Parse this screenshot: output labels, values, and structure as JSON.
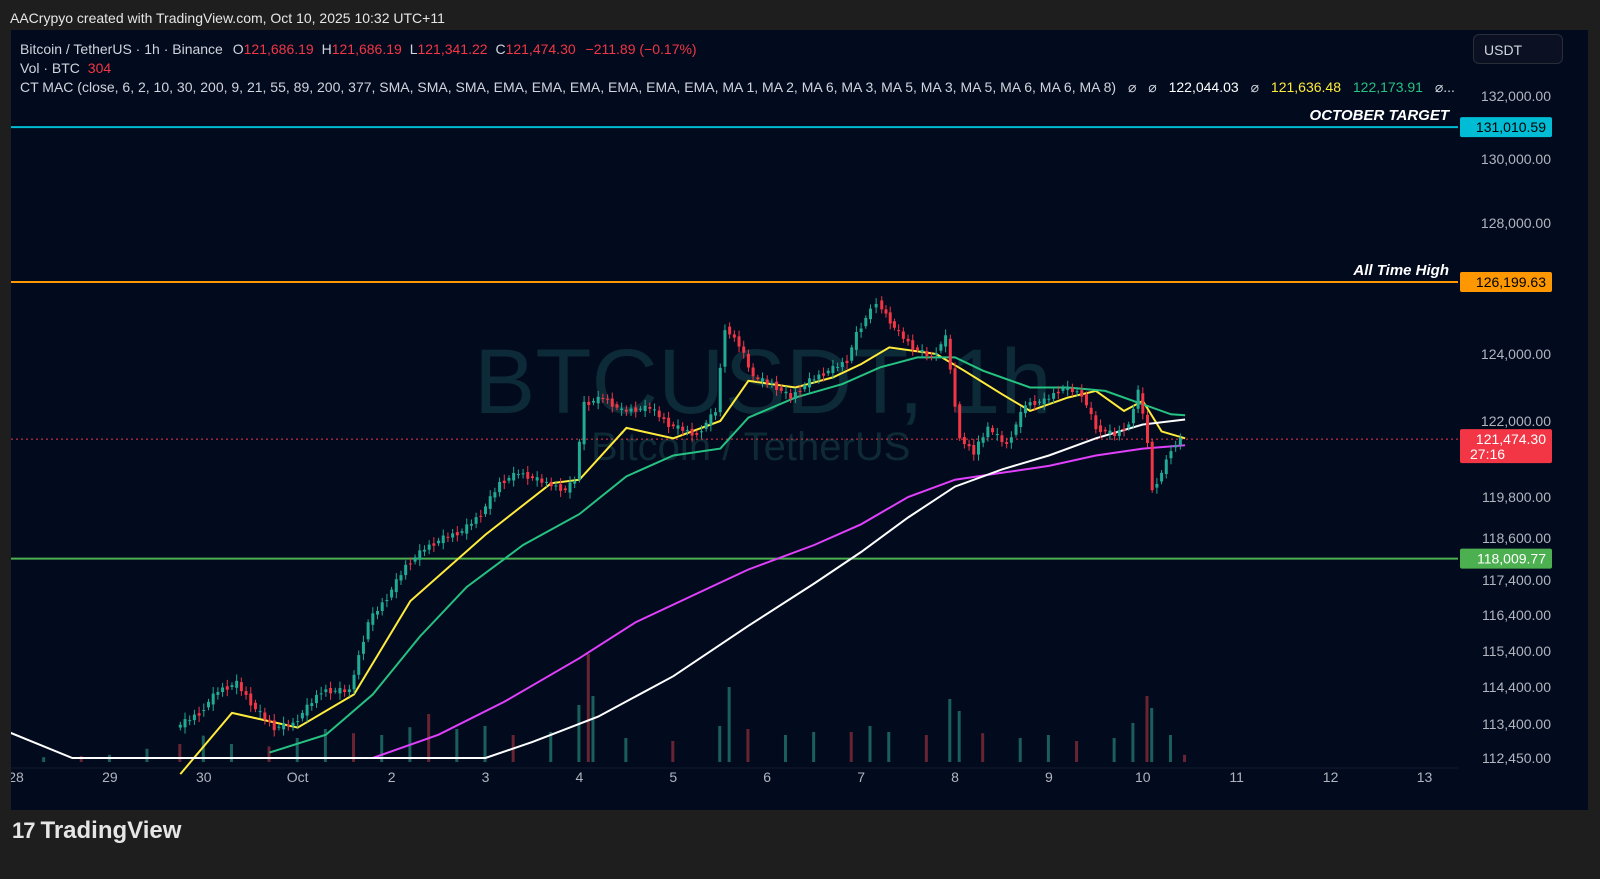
{
  "header": {
    "credit": "AACrypyo created with TradingView.com, Oct 10, 2025 10:32 UTC+11"
  },
  "legend": {
    "symbol": "Bitcoin / TetherUS · 1h · Binance",
    "o_label": "O",
    "o_value": "121,686.19",
    "h_label": "H",
    "h_value": "121,686.19",
    "l_label": "L",
    "l_value": "121,341.22",
    "c_label": "C",
    "c_value": "121,474.30",
    "change": "−211.89 (−0.17%)",
    "vol_label": "Vol · BTC",
    "vol_value": "304",
    "indicator": "CT MAC (close, 6, 2, 10, 30, 200, 9, 21, 55, 89, 200, 377, SMA, SMA, SMA, EMA, EMA, EMA, EMA, EMA, EMA, MA 1, MA 2, MA 6, MA 3, MA 5, MA 3, MA 5, MA 6, MA 6, MA 8)",
    "ind_sym1": "⌀",
    "ind_sym2": "⌀",
    "ind_v1": "122,044.03",
    "ind_sym3": "⌀",
    "ind_v2": "121,636.48",
    "ind_v3": "122,173.91",
    "ind_more": "⌀..."
  },
  "currency_button": "USDT",
  "watermark": {
    "ticker": "BTCUSDT, 1h",
    "name": "Bitcoin / TetherUS"
  },
  "footer": {
    "logo_mark": "17",
    "brand": "TradingView"
  },
  "colors": {
    "up": "#22ab94",
    "down": "#f23645",
    "background": "#020a1e"
  },
  "chart_data": {
    "type": "candlestick",
    "timeframe": "1h",
    "x_ticks": [
      "28",
      "29",
      "30",
      "Oct",
      "2",
      "3",
      "4",
      "5",
      "6",
      "7",
      "8",
      "9",
      "10",
      "11",
      "12",
      "13"
    ],
    "y_ticks": [
      "132,000.00",
      "130,000.00",
      "128,000.00",
      "124,000.00",
      "122,000.00",
      "119,800.00",
      "118,600.00",
      "117,400.00",
      "116,400.00",
      "115,400.00",
      "114,400.00",
      "113,400.00",
      "112,450.00"
    ],
    "price_path": [
      {
        "t": 29.75,
        "p": 113300
      },
      {
        "t": 30.0,
        "p": 113700
      },
      {
        "t": 30.2,
        "p": 114300
      },
      {
        "t": 30.4,
        "p": 114500
      },
      {
        "t": 30.6,
        "p": 113800
      },
      {
        "t": 30.8,
        "p": 113300
      },
      {
        "t": 31.0,
        "p": 113400
      },
      {
        "t": 31.3,
        "p": 114300
      },
      {
        "t": 31.6,
        "p": 114300
      },
      {
        "t": 31.8,
        "p": 116200
      },
      {
        "t": 32.0,
        "p": 116900
      },
      {
        "t": 32.2,
        "p": 117800
      },
      {
        "t": 32.4,
        "p": 118300
      },
      {
        "t": 32.6,
        "p": 118600
      },
      {
        "t": 32.8,
        "p": 118800
      },
      {
        "t": 33.0,
        "p": 119300
      },
      {
        "t": 33.2,
        "p": 120200
      },
      {
        "t": 33.4,
        "p": 120500
      },
      {
        "t": 33.7,
        "p": 120200
      },
      {
        "t": 33.9,
        "p": 120000
      },
      {
        "t": 34.0,
        "p": 120300
      },
      {
        "t": 34.1,
        "p": 122500
      },
      {
        "t": 34.3,
        "p": 122700
      },
      {
        "t": 34.5,
        "p": 122300
      },
      {
        "t": 34.8,
        "p": 122400
      },
      {
        "t": 35.0,
        "p": 121900
      },
      {
        "t": 35.3,
        "p": 121600
      },
      {
        "t": 35.5,
        "p": 122300
      },
      {
        "t": 35.6,
        "p": 124800
      },
      {
        "t": 35.75,
        "p": 124300
      },
      {
        "t": 35.9,
        "p": 123300
      },
      {
        "t": 36.1,
        "p": 123100
      },
      {
        "t": 36.3,
        "p": 122700
      },
      {
        "t": 36.5,
        "p": 123200
      },
      {
        "t": 36.7,
        "p": 123500
      },
      {
        "t": 36.9,
        "p": 123800
      },
      {
        "t": 37.0,
        "p": 124600
      },
      {
        "t": 37.1,
        "p": 125100
      },
      {
        "t": 37.22,
        "p": 125600
      },
      {
        "t": 37.4,
        "p": 124800
      },
      {
        "t": 37.6,
        "p": 124200
      },
      {
        "t": 37.8,
        "p": 123900
      },
      {
        "t": 37.95,
        "p": 124500
      },
      {
        "t": 38.1,
        "p": 121500
      },
      {
        "t": 38.25,
        "p": 121100
      },
      {
        "t": 38.4,
        "p": 121800
      },
      {
        "t": 38.6,
        "p": 121300
      },
      {
        "t": 38.8,
        "p": 122500
      },
      {
        "t": 39.0,
        "p": 122600
      },
      {
        "t": 39.2,
        "p": 123000
      },
      {
        "t": 39.4,
        "p": 122800
      },
      {
        "t": 39.55,
        "p": 121800
      },
      {
        "t": 39.75,
        "p": 121600
      },
      {
        "t": 39.9,
        "p": 121900
      },
      {
        "t": 40.0,
        "p": 122900
      },
      {
        "t": 40.1,
        "p": 121400
      },
      {
        "t": 40.15,
        "p": 120000
      },
      {
        "t": 40.25,
        "p": 120500
      },
      {
        "t": 40.35,
        "p": 121200
      },
      {
        "t": 40.45,
        "p": 121474.3
      }
    ],
    "moving_averages": [
      {
        "color": "#ffeb3b",
        "points": [
          {
            "t": 29.75,
            "p": 112000
          },
          {
            "t": 30.3,
            "p": 113700
          },
          {
            "t": 31.0,
            "p": 113300
          },
          {
            "t": 31.6,
            "p": 114200
          },
          {
            "t": 32.2,
            "p": 116800
          },
          {
            "t": 33.0,
            "p": 118700
          },
          {
            "t": 33.7,
            "p": 120200
          },
          {
            "t": 34.0,
            "p": 120300
          },
          {
            "t": 34.5,
            "p": 121800
          },
          {
            "t": 35.0,
            "p": 121500
          },
          {
            "t": 35.5,
            "p": 122000
          },
          {
            "t": 35.8,
            "p": 123200
          },
          {
            "t": 36.3,
            "p": 123000
          },
          {
            "t": 36.7,
            "p": 123300
          },
          {
            "t": 37.0,
            "p": 123700
          },
          {
            "t": 37.3,
            "p": 124200
          },
          {
            "t": 37.8,
            "p": 124000
          },
          {
            "t": 38.1,
            "p": 123500
          },
          {
            "t": 38.5,
            "p": 122800
          },
          {
            "t": 38.8,
            "p": 122300
          },
          {
            "t": 39.2,
            "p": 122700
          },
          {
            "t": 39.5,
            "p": 122900
          },
          {
            "t": 39.8,
            "p": 122300
          },
          {
            "t": 40.0,
            "p": 122600
          },
          {
            "t": 40.2,
            "p": 121700
          },
          {
            "t": 40.45,
            "p": 121500
          }
        ]
      },
      {
        "color": "#26c281",
        "points": [
          {
            "t": 30.7,
            "p": 112600
          },
          {
            "t": 31.3,
            "p": 113100
          },
          {
            "t": 31.8,
            "p": 114200
          },
          {
            "t": 32.3,
            "p": 115800
          },
          {
            "t": 32.8,
            "p": 117200
          },
          {
            "t": 33.4,
            "p": 118400
          },
          {
            "t": 34.0,
            "p": 119300
          },
          {
            "t": 34.5,
            "p": 120400
          },
          {
            "t": 35.0,
            "p": 121000
          },
          {
            "t": 35.5,
            "p": 121200
          },
          {
            "t": 35.8,
            "p": 122100
          },
          {
            "t": 36.3,
            "p": 122700
          },
          {
            "t": 36.8,
            "p": 123100
          },
          {
            "t": 37.2,
            "p": 123600
          },
          {
            "t": 37.6,
            "p": 123900
          },
          {
            "t": 38.0,
            "p": 123900
          },
          {
            "t": 38.3,
            "p": 123500
          },
          {
            "t": 38.8,
            "p": 123000
          },
          {
            "t": 39.2,
            "p": 123000
          },
          {
            "t": 39.6,
            "p": 122900
          },
          {
            "t": 40.0,
            "p": 122500
          },
          {
            "t": 40.3,
            "p": 122200
          },
          {
            "t": 40.45,
            "p": 122174
          }
        ]
      },
      {
        "color": "#e040fb",
        "points": [
          {
            "t": 31.8,
            "p": 112450
          },
          {
            "t": 32.5,
            "p": 113100
          },
          {
            "t": 33.2,
            "p": 114000
          },
          {
            "t": 34.0,
            "p": 115200
          },
          {
            "t": 34.6,
            "p": 116200
          },
          {
            "t": 35.4,
            "p": 117200
          },
          {
            "t": 35.8,
            "p": 117700
          },
          {
            "t": 36.5,
            "p": 118400
          },
          {
            "t": 37.0,
            "p": 119000
          },
          {
            "t": 37.5,
            "p": 119800
          },
          {
            "t": 38.0,
            "p": 120300
          },
          {
            "t": 38.5,
            "p": 120500
          },
          {
            "t": 39.0,
            "p": 120700
          },
          {
            "t": 39.5,
            "p": 121000
          },
          {
            "t": 40.0,
            "p": 121200
          },
          {
            "t": 40.45,
            "p": 121300
          }
        ]
      },
      {
        "color": "#ffffff",
        "points": [
          {
            "t": 27.9,
            "p": 113200
          },
          {
            "t": 28.6,
            "p": 112450
          },
          {
            "t": 33.0,
            "p": 112450
          },
          {
            "t": 33.5,
            "p": 112900
          },
          {
            "t": 34.2,
            "p": 113600
          },
          {
            "t": 35.0,
            "p": 114700
          },
          {
            "t": 35.8,
            "p": 116100
          },
          {
            "t": 36.5,
            "p": 117300
          },
          {
            "t": 37.0,
            "p": 118200
          },
          {
            "t": 37.5,
            "p": 119200
          },
          {
            "t": 38.0,
            "p": 120100
          },
          {
            "t": 38.5,
            "p": 120600
          },
          {
            "t": 39.0,
            "p": 121000
          },
          {
            "t": 39.5,
            "p": 121500
          },
          {
            "t": 40.0,
            "p": 121900
          },
          {
            "t": 40.45,
            "p": 122044
          }
        ]
      }
    ],
    "horizontal_levels": [
      {
        "label": "OCTOBER TARGET",
        "price": 131010.59,
        "price_text": "131,010.59",
        "color": "#00bcd4"
      },
      {
        "label": "All Time High",
        "price": 126199.63,
        "price_text": "126,199.63",
        "color": "#ff9800"
      },
      {
        "label": "",
        "price": 118009.77,
        "price_text": "118,009.77",
        "color": "#4caf50"
      }
    ],
    "last_price": {
      "price": 121474.3,
      "text": "121,474.30",
      "countdown": "27:16",
      "color": "#f23645"
    },
    "volume": {
      "unit": "BTC",
      "series": [
        {
          "t": 28.3,
          "v": 8
        },
        {
          "t": 28.7,
          "v": 10
        },
        {
          "t": 29.0,
          "v": 12
        },
        {
          "t": 29.4,
          "v": 22
        },
        {
          "t": 29.75,
          "v": 30
        },
        {
          "t": 30.0,
          "v": 44
        },
        {
          "t": 30.3,
          "v": 30
        },
        {
          "t": 30.7,
          "v": 26
        },
        {
          "t": 31.0,
          "v": 40
        },
        {
          "t": 31.3,
          "v": 55
        },
        {
          "t": 31.6,
          "v": 48
        },
        {
          "t": 31.9,
          "v": 45
        },
        {
          "t": 32.2,
          "v": 58
        },
        {
          "t": 32.4,
          "v": 80
        },
        {
          "t": 32.7,
          "v": 55
        },
        {
          "t": 33.0,
          "v": 60
        },
        {
          "t": 33.3,
          "v": 45
        },
        {
          "t": 33.7,
          "v": 50
        },
        {
          "t": 34.0,
          "v": 95
        },
        {
          "t": 34.1,
          "v": 180
        },
        {
          "t": 34.15,
          "v": 110
        },
        {
          "t": 34.5,
          "v": 40
        },
        {
          "t": 35.0,
          "v": 35
        },
        {
          "t": 35.5,
          "v": 60
        },
        {
          "t": 35.6,
          "v": 125
        },
        {
          "t": 35.8,
          "v": 55
        },
        {
          "t": 36.2,
          "v": 45
        },
        {
          "t": 36.5,
          "v": 50
        },
        {
          "t": 36.9,
          "v": 50
        },
        {
          "t": 37.1,
          "v": 60
        },
        {
          "t": 37.3,
          "v": 50
        },
        {
          "t": 37.7,
          "v": 45
        },
        {
          "t": 37.95,
          "v": 105
        },
        {
          "t": 38.05,
          "v": 85
        },
        {
          "t": 38.3,
          "v": 48
        },
        {
          "t": 38.7,
          "v": 40
        },
        {
          "t": 39.0,
          "v": 45
        },
        {
          "t": 39.3,
          "v": 35
        },
        {
          "t": 39.7,
          "v": 40
        },
        {
          "t": 39.9,
          "v": 65
        },
        {
          "t": 40.05,
          "v": 110
        },
        {
          "t": 40.1,
          "v": 90
        },
        {
          "t": 40.3,
          "v": 45
        },
        {
          "t": 40.45,
          "v": 12
        }
      ]
    }
  }
}
